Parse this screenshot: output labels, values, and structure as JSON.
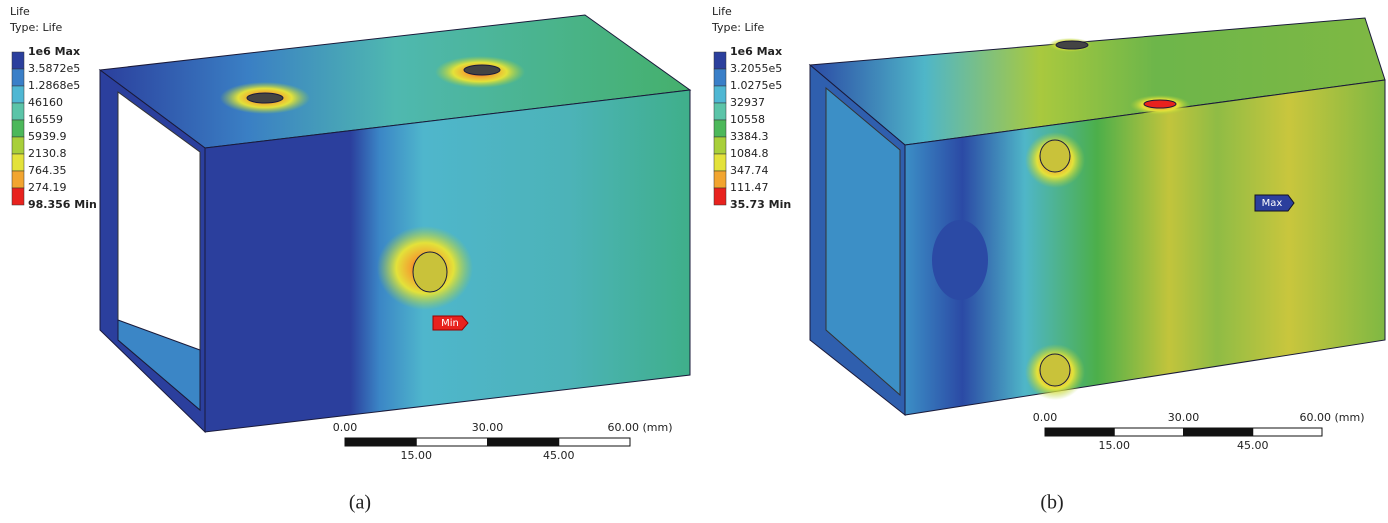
{
  "panels": [
    {
      "title": "Life",
      "subtitle": "Type: Life",
      "legend": [
        "1e6 Max",
        "3.5872e5",
        "1.2868e5",
        "46160",
        "16559",
        "5939.9",
        "2130.8",
        "764.35",
        "274.19",
        "98.356 Min"
      ],
      "scale_top": [
        "0.00",
        "30.00",
        "60.00 (mm)"
      ],
      "scale_bottom": [
        "15.00",
        "45.00"
      ],
      "marker": "Min",
      "caption": "(a)"
    },
    {
      "title": "Life",
      "subtitle": "Type: Life",
      "legend": [
        "1e6 Max",
        "3.2055e5",
        "1.0275e5",
        "32937",
        "10558",
        "3384.3",
        "1084.8",
        "347.74",
        "111.47",
        "35.73 Min"
      ],
      "scale_top": [
        "0.00",
        "30.00",
        "60.00 (mm)"
      ],
      "scale_bottom": [
        "15.00",
        "45.00"
      ],
      "marker": "Max",
      "caption": "(b)"
    }
  ]
}
